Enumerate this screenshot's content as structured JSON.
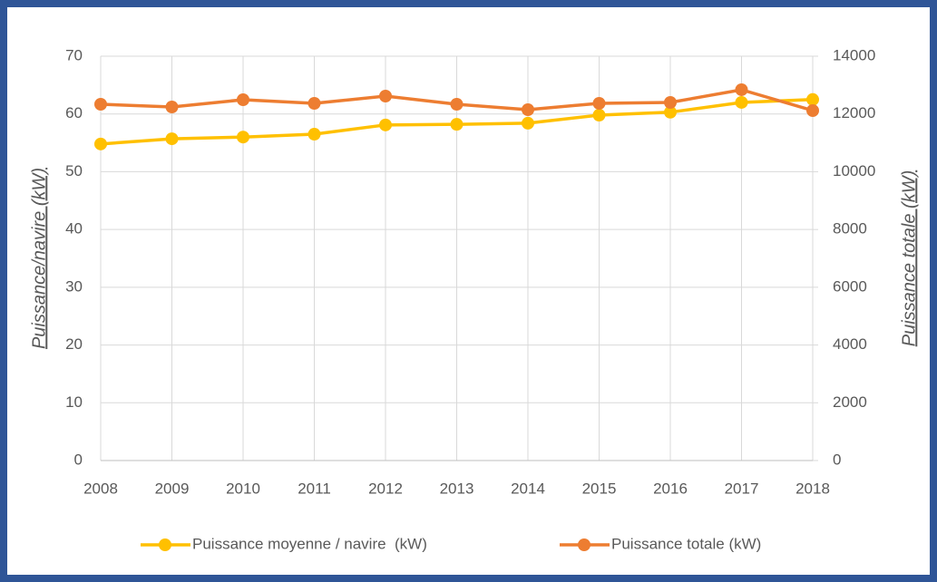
{
  "chart_data": {
    "type": "line",
    "categories": [
      "2008",
      "2009",
      "2010",
      "2011",
      "2012",
      "2013",
      "2014",
      "2015",
      "2016",
      "2017",
      "2018"
    ],
    "series": [
      {
        "name": "Puissance moyenne / navire  (kW)",
        "color": "#ffc000",
        "values": [
          54.8,
          55.7,
          56.0,
          56.5,
          58.1,
          58.2,
          58.4,
          59.8,
          60.3,
          62.0,
          62.5
        ]
      },
      {
        "name": "Puissance totale (kW)",
        "color": "#ed7d31",
        "axis": "y2",
        "values": [
          12336,
          12242,
          12493,
          12368,
          12619,
          12336,
          12148,
          12368,
          12399,
          12839,
          12117
        ]
      }
    ],
    "ylabel": "Puissance/navire (kW)",
    "y2label": "Puissance totale (kW)",
    "ylim": [
      0,
      70
    ],
    "yticks": [
      0,
      10,
      20,
      30,
      40,
      50,
      60,
      70
    ],
    "y2lim": [
      0,
      14000
    ],
    "y2ticks": [
      0,
      2000,
      4000,
      6000,
      8000,
      10000,
      12000,
      14000
    ],
    "grid": true,
    "legend": "bottom"
  }
}
